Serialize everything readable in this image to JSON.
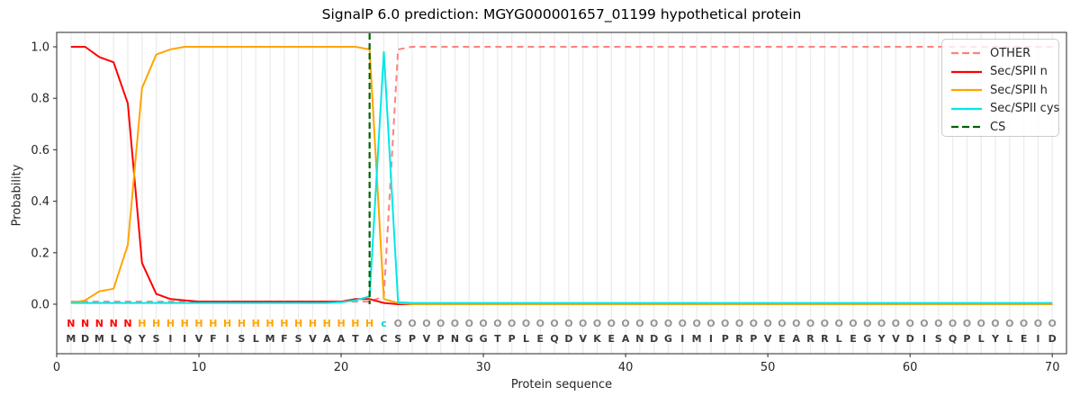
{
  "title": "SignalP 6.0 prediction: MGYG000001657_01199 hypothetical protein",
  "chart_data": {
    "type": "line",
    "title": "SignalP 6.0 prediction: MGYG000001657_01199 hypothetical protein",
    "xlabel": "Protein sequence",
    "ylabel": "Probability",
    "xlim": [
      0,
      71
    ],
    "ylim": [
      -0.19,
      1.06
    ],
    "xticks": [
      0,
      10,
      20,
      30,
      40,
      50,
      60,
      70
    ],
    "yticks": [
      0.0,
      0.2,
      0.4,
      0.6,
      0.8,
      1.0
    ],
    "ytick_labels": [
      "0.0",
      "0.2",
      "0.4",
      "0.6",
      "0.8",
      "1.0"
    ],
    "grid": "vertical gridline at every residue position 1-70",
    "legend_position": "upper right",
    "x_positions": "residues 1 to 70",
    "sequence": "MDMLQYSIIVFISLMFSVAATACSPVPNGGTPLEQDVKEANDGIMIPRPVEARRLEGYVDISQPLYLEID",
    "region_labels": "NNNNNHHHHHHHHHHHHHHHHHcOOOOOOOOOOOOOOOOOOOOOOOOOOOOOOOOOOOOOOOOOOOOOOO",
    "letter_colors": {
      "N": "#ff0000",
      "H": "#ffa500",
      "c": "#00d8d8",
      "O": "#949494",
      "sequence": "#3a3a3a"
    },
    "cs_position": 22,
    "series": [
      {
        "name": "OTHER",
        "color": "#ff8080",
        "style": "dashed",
        "values": [
          0.01,
          0.01,
          0.01,
          0.01,
          0.01,
          0.01,
          0.01,
          0.01,
          0.01,
          0.01,
          0.01,
          0.01,
          0.01,
          0.01,
          0.01,
          0.01,
          0.01,
          0.01,
          0.01,
          0.01,
          0.01,
          0.01,
          0.03,
          0.99,
          1,
          1,
          1,
          1,
          1,
          1,
          1,
          1,
          1,
          1,
          1,
          1,
          1,
          1,
          1,
          1,
          1,
          1,
          1,
          1,
          1,
          1,
          1,
          1,
          1,
          1,
          1,
          1,
          1,
          1,
          1,
          1,
          1,
          1,
          1,
          1,
          1,
          1,
          1,
          1,
          1,
          1,
          1,
          1,
          1,
          1
        ]
      },
      {
        "name": "Sec/SPII n",
        "color": "#ff0000",
        "style": "solid",
        "values": [
          1,
          1,
          0.96,
          0.94,
          0.78,
          0.16,
          0.04,
          0.02,
          0.015,
          0.01,
          0.01,
          0.01,
          0.01,
          0.01,
          0.01,
          0.01,
          0.01,
          0.01,
          0.01,
          0.01,
          0.02,
          0.02,
          0.005,
          0,
          0,
          0,
          0,
          0,
          0,
          0,
          0,
          0,
          0,
          0,
          0,
          0,
          0,
          0,
          0,
          0,
          0,
          0,
          0,
          0,
          0,
          0,
          0,
          0,
          0,
          0,
          0,
          0,
          0,
          0,
          0,
          0,
          0,
          0,
          0,
          0,
          0,
          0,
          0,
          0,
          0,
          0,
          0,
          0,
          0,
          0
        ]
      },
      {
        "name": "Sec/SPII h",
        "color": "#ffa500",
        "style": "solid",
        "values": [
          0.005,
          0.015,
          0.05,
          0.06,
          0.23,
          0.84,
          0.97,
          0.99,
          1,
          1,
          1,
          1,
          1,
          1,
          1,
          1,
          1,
          1,
          1,
          1,
          1,
          0.99,
          0.02,
          0.005,
          0,
          0,
          0,
          0,
          0,
          0,
          0,
          0,
          0,
          0,
          0,
          0,
          0,
          0,
          0,
          0,
          0,
          0,
          0,
          0,
          0,
          0,
          0,
          0,
          0,
          0,
          0,
          0,
          0,
          0,
          0,
          0,
          0,
          0,
          0,
          0,
          0,
          0,
          0,
          0,
          0,
          0,
          0,
          0,
          0,
          0
        ]
      },
      {
        "name": "Sec/SPII cys",
        "color": "#00e8e8",
        "style": "solid",
        "values": [
          0.005,
          0.005,
          0.005,
          0.005,
          0.005,
          0.005,
          0.005,
          0.005,
          0.005,
          0.005,
          0.005,
          0.005,
          0.005,
          0.005,
          0.005,
          0.005,
          0.005,
          0.005,
          0.005,
          0.008,
          0.015,
          0.03,
          0.98,
          0.008,
          0.005,
          0.005,
          0.005,
          0.005,
          0.005,
          0.005,
          0.005,
          0.005,
          0.005,
          0.005,
          0.005,
          0.005,
          0.005,
          0.005,
          0.005,
          0.005,
          0.005,
          0.005,
          0.005,
          0.005,
          0.005,
          0.005,
          0.005,
          0.005,
          0.005,
          0.005,
          0.005,
          0.005,
          0.005,
          0.005,
          0.005,
          0.005,
          0.005,
          0.005,
          0.005,
          0.005,
          0.005,
          0.005,
          0.005,
          0.005,
          0.005,
          0.005,
          0.005,
          0.005,
          0.005,
          0.005
        ]
      },
      {
        "name": "CS",
        "color": "#006400",
        "style": "dashed-vline",
        "x": 22
      }
    ]
  }
}
